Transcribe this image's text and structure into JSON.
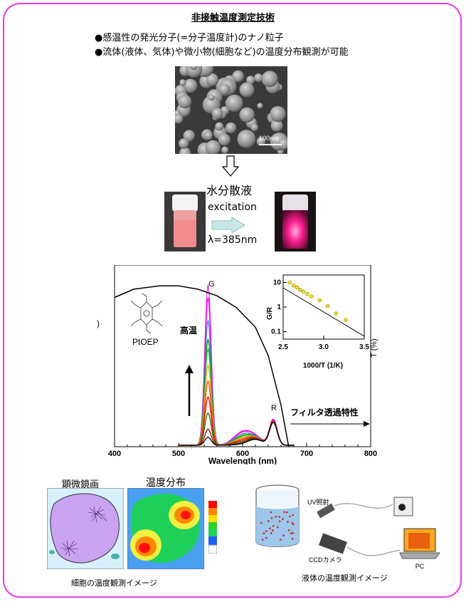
{
  "title": "非接触温度測定技術",
  "bullets": [
    "●感温性の発光分子(=分子温度計)のナノ粒子",
    "●流体(液体、気体)や微小物(細胞など)の温度分布観測が可能"
  ],
  "sem": {
    "scale_label": "100nm"
  },
  "dispersion_label": "水分散液",
  "excitation_label": "excitation",
  "wavelength_label": "λ=385nm",
  "chart_data": [
    {
      "type": "line",
      "xlabel": "Wavelength (nm)",
      "ylabel_right": "T (%)",
      "xlim": [
        400,
        800
      ],
      "xticks": [
        "400",
        "500",
        "600",
        "700",
        "800"
      ],
      "left_ylabel_fragment": ")",
      "molecule_label": "PtOEP",
      "high_temp_label": "高温",
      "peak_g_label": "G",
      "peak_r_label": "R",
      "filter_label": "フィルタ透過特性",
      "filter_curve": {
        "x": [
          400,
          430,
          470,
          500,
          530,
          560,
          590,
          620,
          640,
          660,
          672
        ],
        "y": [
          90,
          95,
          97,
          97,
          95,
          91,
          84,
          72,
          55,
          25,
          0
        ]
      },
      "series": [
        {
          "color": "#e030e0",
          "peak_g": 100,
          "peak_r": 16
        },
        {
          "color": "#ff00ff",
          "peak_g": 92,
          "peak_r": 16
        },
        {
          "color": "#3a78e0",
          "peak_g": 78,
          "peak_r": 15
        },
        {
          "color": "#00a000",
          "peak_g": 66,
          "peak_r": 15
        },
        {
          "color": "#30c030",
          "peak_g": 60,
          "peak_r": 15
        },
        {
          "color": "#ffa000",
          "peak_g": 50,
          "peak_r": 15
        },
        {
          "color": "#ff4000",
          "peak_g": 40,
          "peak_r": 15
        },
        {
          "color": "#ff0000",
          "peak_g": 30,
          "peak_r": 15
        },
        {
          "color": "#008000",
          "peak_g": 20,
          "peak_r": 15
        },
        {
          "color": "#a00000",
          "peak_g": 10,
          "peak_r": 15
        },
        {
          "color": "#000000",
          "peak_g": 5,
          "peak_r": 14
        }
      ]
    },
    {
      "type": "scatter",
      "xlabel": "1000/T (1/K)",
      "ylabel": "G/R",
      "xlim": [
        2.5,
        3.5
      ],
      "ylim": [
        0.05,
        20
      ],
      "yscale": "log",
      "xticks": [
        "2.5",
        "3.0",
        "3.5"
      ],
      "yticks": [
        "10",
        "1",
        "0.1"
      ],
      "x": [
        2.58,
        2.63,
        2.67,
        2.71,
        2.75,
        2.8,
        2.85,
        2.95,
        3.05,
        3.15,
        3.27
      ],
      "y": [
        10.0,
        7.5,
        6.2,
        5.0,
        4.2,
        3.4,
        2.7,
        1.9,
        1.1,
        0.55,
        0.3
      ]
    }
  ],
  "cell_panel": {
    "title": "顕微鏡画",
    "caption": "細胞の温度観測イメージ"
  },
  "temp_panel": {
    "title": "温度分布"
  },
  "setup": {
    "uv_label": "UV照射",
    "ccd_label": "CCDカメラ",
    "pc_label": "PC",
    "caption": "液体の温度観測イメージ"
  },
  "colors": {
    "frame": "#e23ee6",
    "cell": "#c9a2f2",
    "cell_bg": "#d8f0fb",
    "arrow": "#c7e7e7"
  }
}
